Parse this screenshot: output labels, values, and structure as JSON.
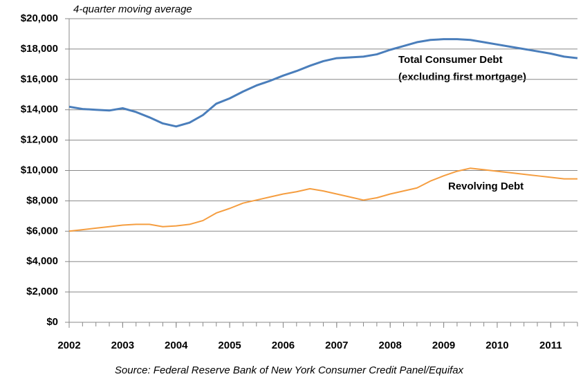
{
  "chart_data": {
    "type": "line",
    "subtitle": "4-quarter moving average",
    "source": "Source: Federal Reserve Bank of New York Consumer Credit Panel/Equifax",
    "x": [
      2002,
      2002.25,
      2002.5,
      2002.75,
      2003,
      2003.25,
      2003.5,
      2003.75,
      2004,
      2004.25,
      2004.5,
      2004.75,
      2005,
      2005.25,
      2005.5,
      2005.75,
      2006,
      2006.25,
      2006.5,
      2006.75,
      2007,
      2007.25,
      2007.5,
      2007.75,
      2008,
      2008.25,
      2008.5,
      2008.75,
      2009,
      2009.25,
      2009.5,
      2009.75,
      2010,
      2010.25,
      2010.5,
      2010.75,
      2011,
      2011.25,
      2011.5
    ],
    "series": [
      {
        "name": "Total Consumer Debt",
        "note": "(excluding first mortgage)",
        "color": "#4a7ebb",
        "values": [
          14200,
          14050,
          14000,
          13950,
          14100,
          13850,
          13500,
          13100,
          12900,
          13150,
          13650,
          14400,
          14750,
          15200,
          15600,
          15900,
          16250,
          16550,
          16900,
          17200,
          17400,
          17450,
          17500,
          17650,
          17950,
          18200,
          18450,
          18600,
          18650,
          18650,
          18600,
          18450,
          18300,
          18150,
          18000,
          17850,
          17700,
          17500,
          17400
        ]
      },
      {
        "name": "Revolving Debt",
        "color": "#f59d3f",
        "values": [
          6000,
          6100,
          6200,
          6300,
          6400,
          6450,
          6450,
          6300,
          6350,
          6450,
          6700,
          7200,
          7500,
          7850,
          8050,
          8250,
          8450,
          8600,
          8800,
          8650,
          8450,
          8250,
          8050,
          8200,
          8450,
          8650,
          8850,
          9300,
          9650,
          9950,
          10150,
          10050,
          9950,
          9850,
          9750,
          9650,
          9550,
          9450,
          9450
        ]
      }
    ],
    "xlim": [
      2002,
      2011.5
    ],
    "xticks": [
      2002,
      2003,
      2004,
      2005,
      2006,
      2007,
      2008,
      2009,
      2010,
      2011
    ],
    "ylim": [
      0,
      20000
    ],
    "yticks": [
      {
        "value": 0,
        "label": "$0"
      },
      {
        "value": 2000,
        "label": "$2,000"
      },
      {
        "value": 4000,
        "label": "$4,000"
      },
      {
        "value": 6000,
        "label": "$6,000"
      },
      {
        "value": 8000,
        "label": "$8,000"
      },
      {
        "value": 10000,
        "label": "$10,000"
      },
      {
        "value": 12000,
        "label": "$12,000"
      },
      {
        "value": 14000,
        "label": "$14,000"
      },
      {
        "value": 16000,
        "label": "$16,000"
      },
      {
        "value": 18000,
        "label": "$18,000"
      },
      {
        "value": 20000,
        "label": "$20,000"
      }
    ],
    "grid": true
  }
}
